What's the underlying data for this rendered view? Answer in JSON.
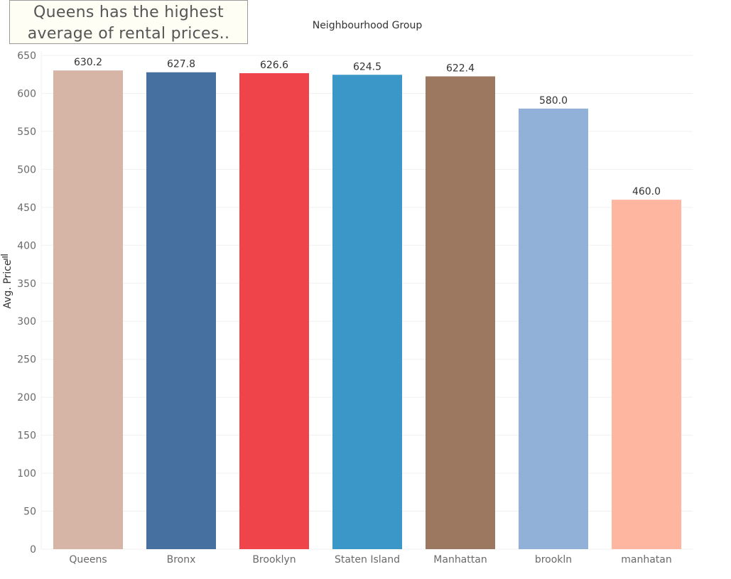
{
  "annotation": {
    "line1": "Queens has the highest",
    "line2": "average of rental prices.."
  },
  "chart_data": {
    "type": "bar",
    "title": "Neighbourhood Group",
    "xlabel": "",
    "ylabel": "Avg. Price",
    "ylim": [
      0,
      650
    ],
    "yticks": [
      0,
      50,
      100,
      150,
      200,
      250,
      300,
      350,
      400,
      450,
      500,
      550,
      600,
      650
    ],
    "grid": true,
    "categories": [
      "Queens",
      "Bronx",
      "Brooklyn",
      "Staten Island",
      "Manhattan",
      "brookln",
      "manhatan"
    ],
    "values": [
      630.2,
      627.8,
      626.6,
      624.5,
      622.4,
      580.0,
      460.0
    ],
    "data_labels": [
      "630.2",
      "627.8",
      "626.6",
      "624.5",
      "622.4",
      "580.0",
      "460.0"
    ],
    "colors": [
      "#d6b4a6",
      "#4670a0",
      "#ef444a",
      "#3a97c7",
      "#9c7860",
      "#91b1d8",
      "#ffb6a0"
    ]
  }
}
